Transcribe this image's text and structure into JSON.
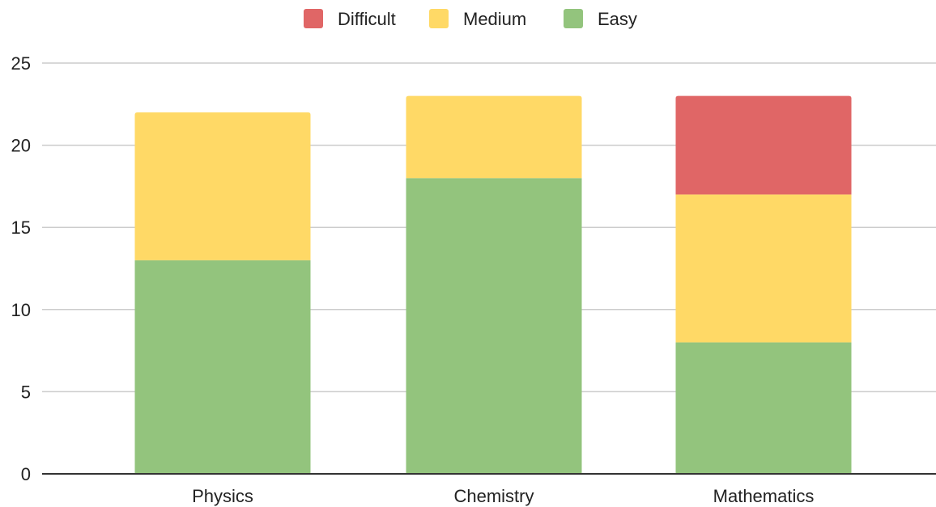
{
  "chart_data": {
    "type": "bar",
    "stacked": true,
    "categories": [
      "Physics",
      "Chemistry",
      "Mathematics"
    ],
    "series": [
      {
        "name": "Easy",
        "values": [
          13,
          18,
          8
        ],
        "color": "#93c47d"
      },
      {
        "name": "Medium",
        "values": [
          9,
          5,
          9
        ],
        "color": "#ffd966"
      },
      {
        "name": "Difficult",
        "values": [
          0,
          0,
          6
        ],
        "color": "#e06666"
      }
    ],
    "legend_order": [
      "Difficult",
      "Medium",
      "Easy"
    ],
    "legend_position": "top-center",
    "ylim": [
      0,
      25
    ],
    "yticks": [
      0,
      5,
      10,
      15,
      20,
      25
    ],
    "grid": true,
    "title": "",
    "xlabel": "",
    "ylabel": ""
  }
}
